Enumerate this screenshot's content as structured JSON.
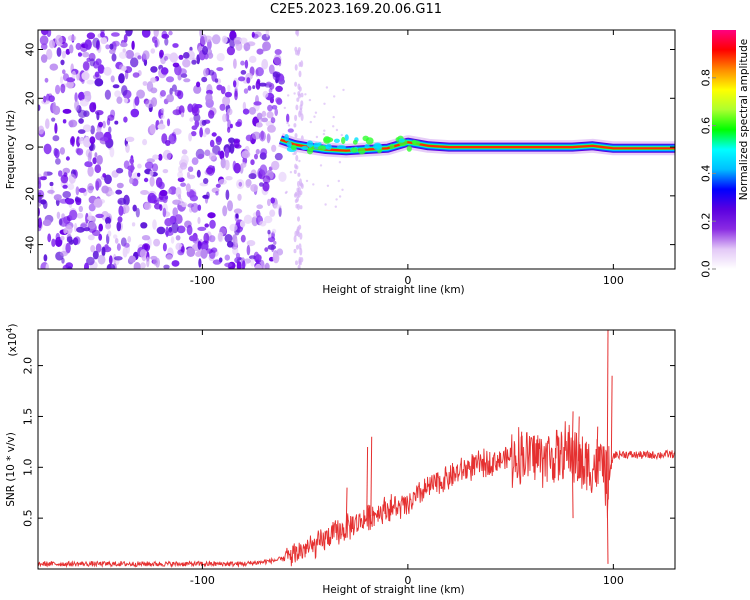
{
  "title": "C2E5.2023.169.20.06.G11",
  "chart_data": [
    {
      "type": "heatmap",
      "name": "spectrogram",
      "xlabel": "Height of straight line (km)",
      "ylabel": "Frequency (Hz)",
      "xlim": [
        -180,
        130
      ],
      "ylim": [
        -50,
        48
      ],
      "x_ticks": [
        -100,
        0,
        100
      ],
      "y_ticks": [
        -40,
        -20,
        0,
        20,
        40
      ],
      "colorbar": {
        "label": "Normalized spectral amplitude",
        "range": [
          0,
          1
        ],
        "ticks": [
          "0.0",
          "0.2",
          "0.4",
          "0.6",
          "0.8"
        ],
        "colormap": [
          "#ffffff",
          "#e3c8f7",
          "#8a2be2",
          "#5a00e0",
          "#0000ff",
          "#00bfff",
          "#00ffff",
          "#00ff00",
          "#adff2f",
          "#ffff00",
          "#ff8c00",
          "#ff0000",
          "#ff0080"
        ]
      },
      "signal_line": {
        "x": [
          -62,
          -55,
          -48,
          -40,
          -30,
          -20,
          -10,
          0,
          10,
          20,
          40,
          60,
          80,
          90,
          95,
          100,
          130
        ],
        "y": [
          3,
          1,
          0,
          -1,
          -1.5,
          -1,
          -0.5,
          2,
          0.5,
          0,
          0,
          0,
          0,
          0.5,
          0,
          -0.5,
          -0.5
        ]
      },
      "noise_region_x": [
        -180,
        -62
      ]
    },
    {
      "type": "line",
      "name": "snr",
      "xlabel": "Height of straight line (km)",
      "ylabel": "SNR (10 * v/v)",
      "multiplier": "(x10",
      "multiplier_exp": "4",
      "multiplier_close": ")",
      "xlim": [
        -180,
        130
      ],
      "ylim": [
        0,
        2.35
      ],
      "x_ticks": [
        -100,
        0,
        100
      ],
      "y_ticks": [
        "0.5",
        "1.0",
        "1.5",
        "2.0"
      ],
      "color": "#e53030",
      "series": [
        {
          "x": [
            -180,
            -160,
            -140,
            -120,
            -100,
            -80,
            -70,
            -60,
            -55,
            -50,
            -45,
            -40,
            -35,
            -30,
            -25,
            -20,
            -15,
            -10,
            -5,
            0,
            5,
            10,
            15,
            20,
            25,
            30,
            40,
            50,
            60,
            70,
            80,
            85,
            90,
            95,
            97,
            100,
            105,
            110,
            120,
            130
          ],
          "values": [
            0.05,
            0.05,
            0.05,
            0.05,
            0.05,
            0.05,
            0.07,
            0.1,
            0.15,
            0.2,
            0.22,
            0.3,
            0.35,
            0.4,
            0.45,
            0.5,
            0.55,
            0.6,
            0.6,
            0.62,
            0.72,
            0.8,
            0.85,
            0.9,
            0.95,
            1.0,
            1.05,
            1.1,
            1.12,
            1.1,
            1.15,
            1.0,
            1.0,
            1.05,
            0.8,
            1.12,
            1.13,
            1.12,
            1.12,
            1.13
          ]
        }
      ],
      "spikes": [
        {
          "x": -30,
          "y": 0.8
        },
        {
          "x": -20,
          "y": 1.2
        },
        {
          "x": -18,
          "y": 1.3
        },
        {
          "x": 55,
          "y": 1.35
        },
        {
          "x": 80,
          "y": 1.55
        },
        {
          "x": 83,
          "y": 1.5
        },
        {
          "x": 92,
          "y": 1.4
        },
        {
          "x": 97,
          "y": 2.35
        },
        {
          "x": 99,
          "y": 1.9
        }
      ],
      "dips": [
        {
          "x": 80,
          "y": 0.5
        },
        {
          "x": 97,
          "y": 0.05
        }
      ]
    }
  ]
}
